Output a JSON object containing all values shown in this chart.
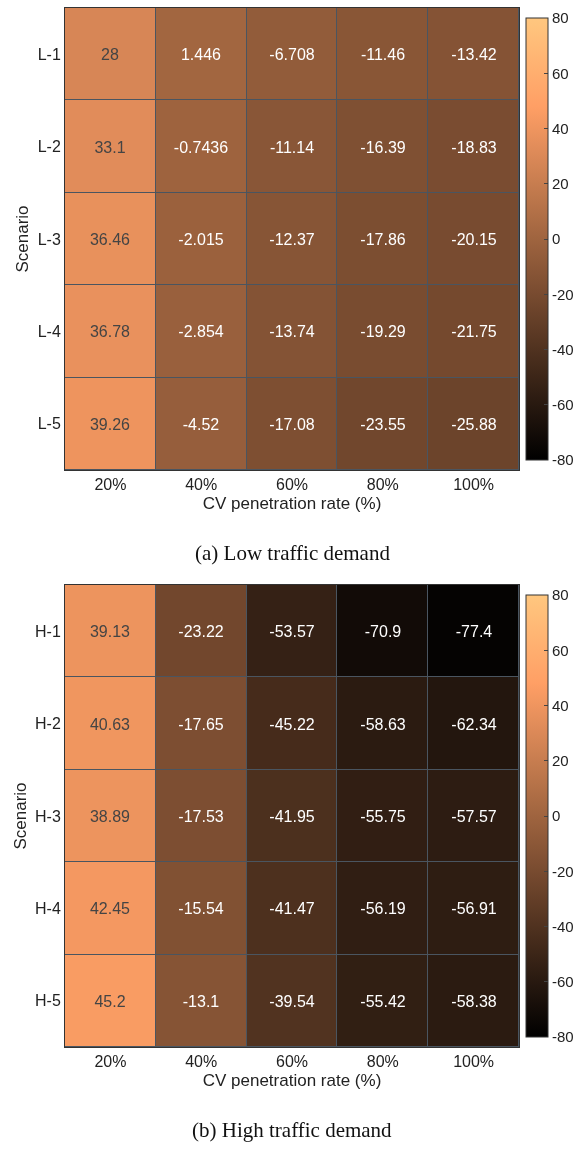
{
  "chart_data": [
    {
      "type": "heatmap",
      "title": "(a) Low traffic demand",
      "xlabel": "CV penetration rate (%)",
      "ylabel": "Scenario",
      "categories": [
        "20%",
        "40%",
        "60%",
        "80%",
        "100%"
      ],
      "y_categories": [
        "L-1",
        "L-2",
        "L-3",
        "L-4",
        "L-5"
      ],
      "cells": [
        [
          28,
          1.446,
          -6.708,
          -11.46,
          -13.42
        ],
        [
          33.1,
          -0.7436,
          -11.14,
          -16.39,
          -18.83
        ],
        [
          36.46,
          -2.015,
          -12.37,
          -17.86,
          -20.15
        ],
        [
          36.78,
          -2.854,
          -13.74,
          -19.29,
          -21.75
        ],
        [
          39.26,
          -4.52,
          -17.08,
          -23.55,
          -25.88
        ]
      ],
      "clim": [
        -80,
        80
      ],
      "cticks": [
        -80,
        -60,
        -40,
        -20,
        0,
        20,
        40,
        60,
        80
      ],
      "data_labels": true
    },
    {
      "type": "heatmap",
      "title": "(b) High traffic demand",
      "xlabel": "CV penetration rate (%)",
      "ylabel": "Scenario",
      "categories": [
        "20%",
        "40%",
        "60%",
        "80%",
        "100%"
      ],
      "y_categories": [
        "H-1",
        "H-2",
        "H-3",
        "H-4",
        "H-5"
      ],
      "cells": [
        [
          39.13,
          -23.22,
          -53.57,
          -70.9,
          -77.4
        ],
        [
          40.63,
          -17.65,
          -45.22,
          -58.63,
          -62.34
        ],
        [
          38.89,
          -17.53,
          -41.95,
          -55.75,
          -57.57
        ],
        [
          42.45,
          -15.54,
          -41.47,
          -56.19,
          -56.91
        ],
        [
          45.2,
          -13.1,
          -39.54,
          -55.42,
          -58.38
        ]
      ],
      "clim": [
        -80,
        80
      ],
      "cticks": [
        -80,
        -60,
        -40,
        -20,
        0,
        20,
        40,
        60,
        80
      ],
      "data_labels": true
    }
  ]
}
